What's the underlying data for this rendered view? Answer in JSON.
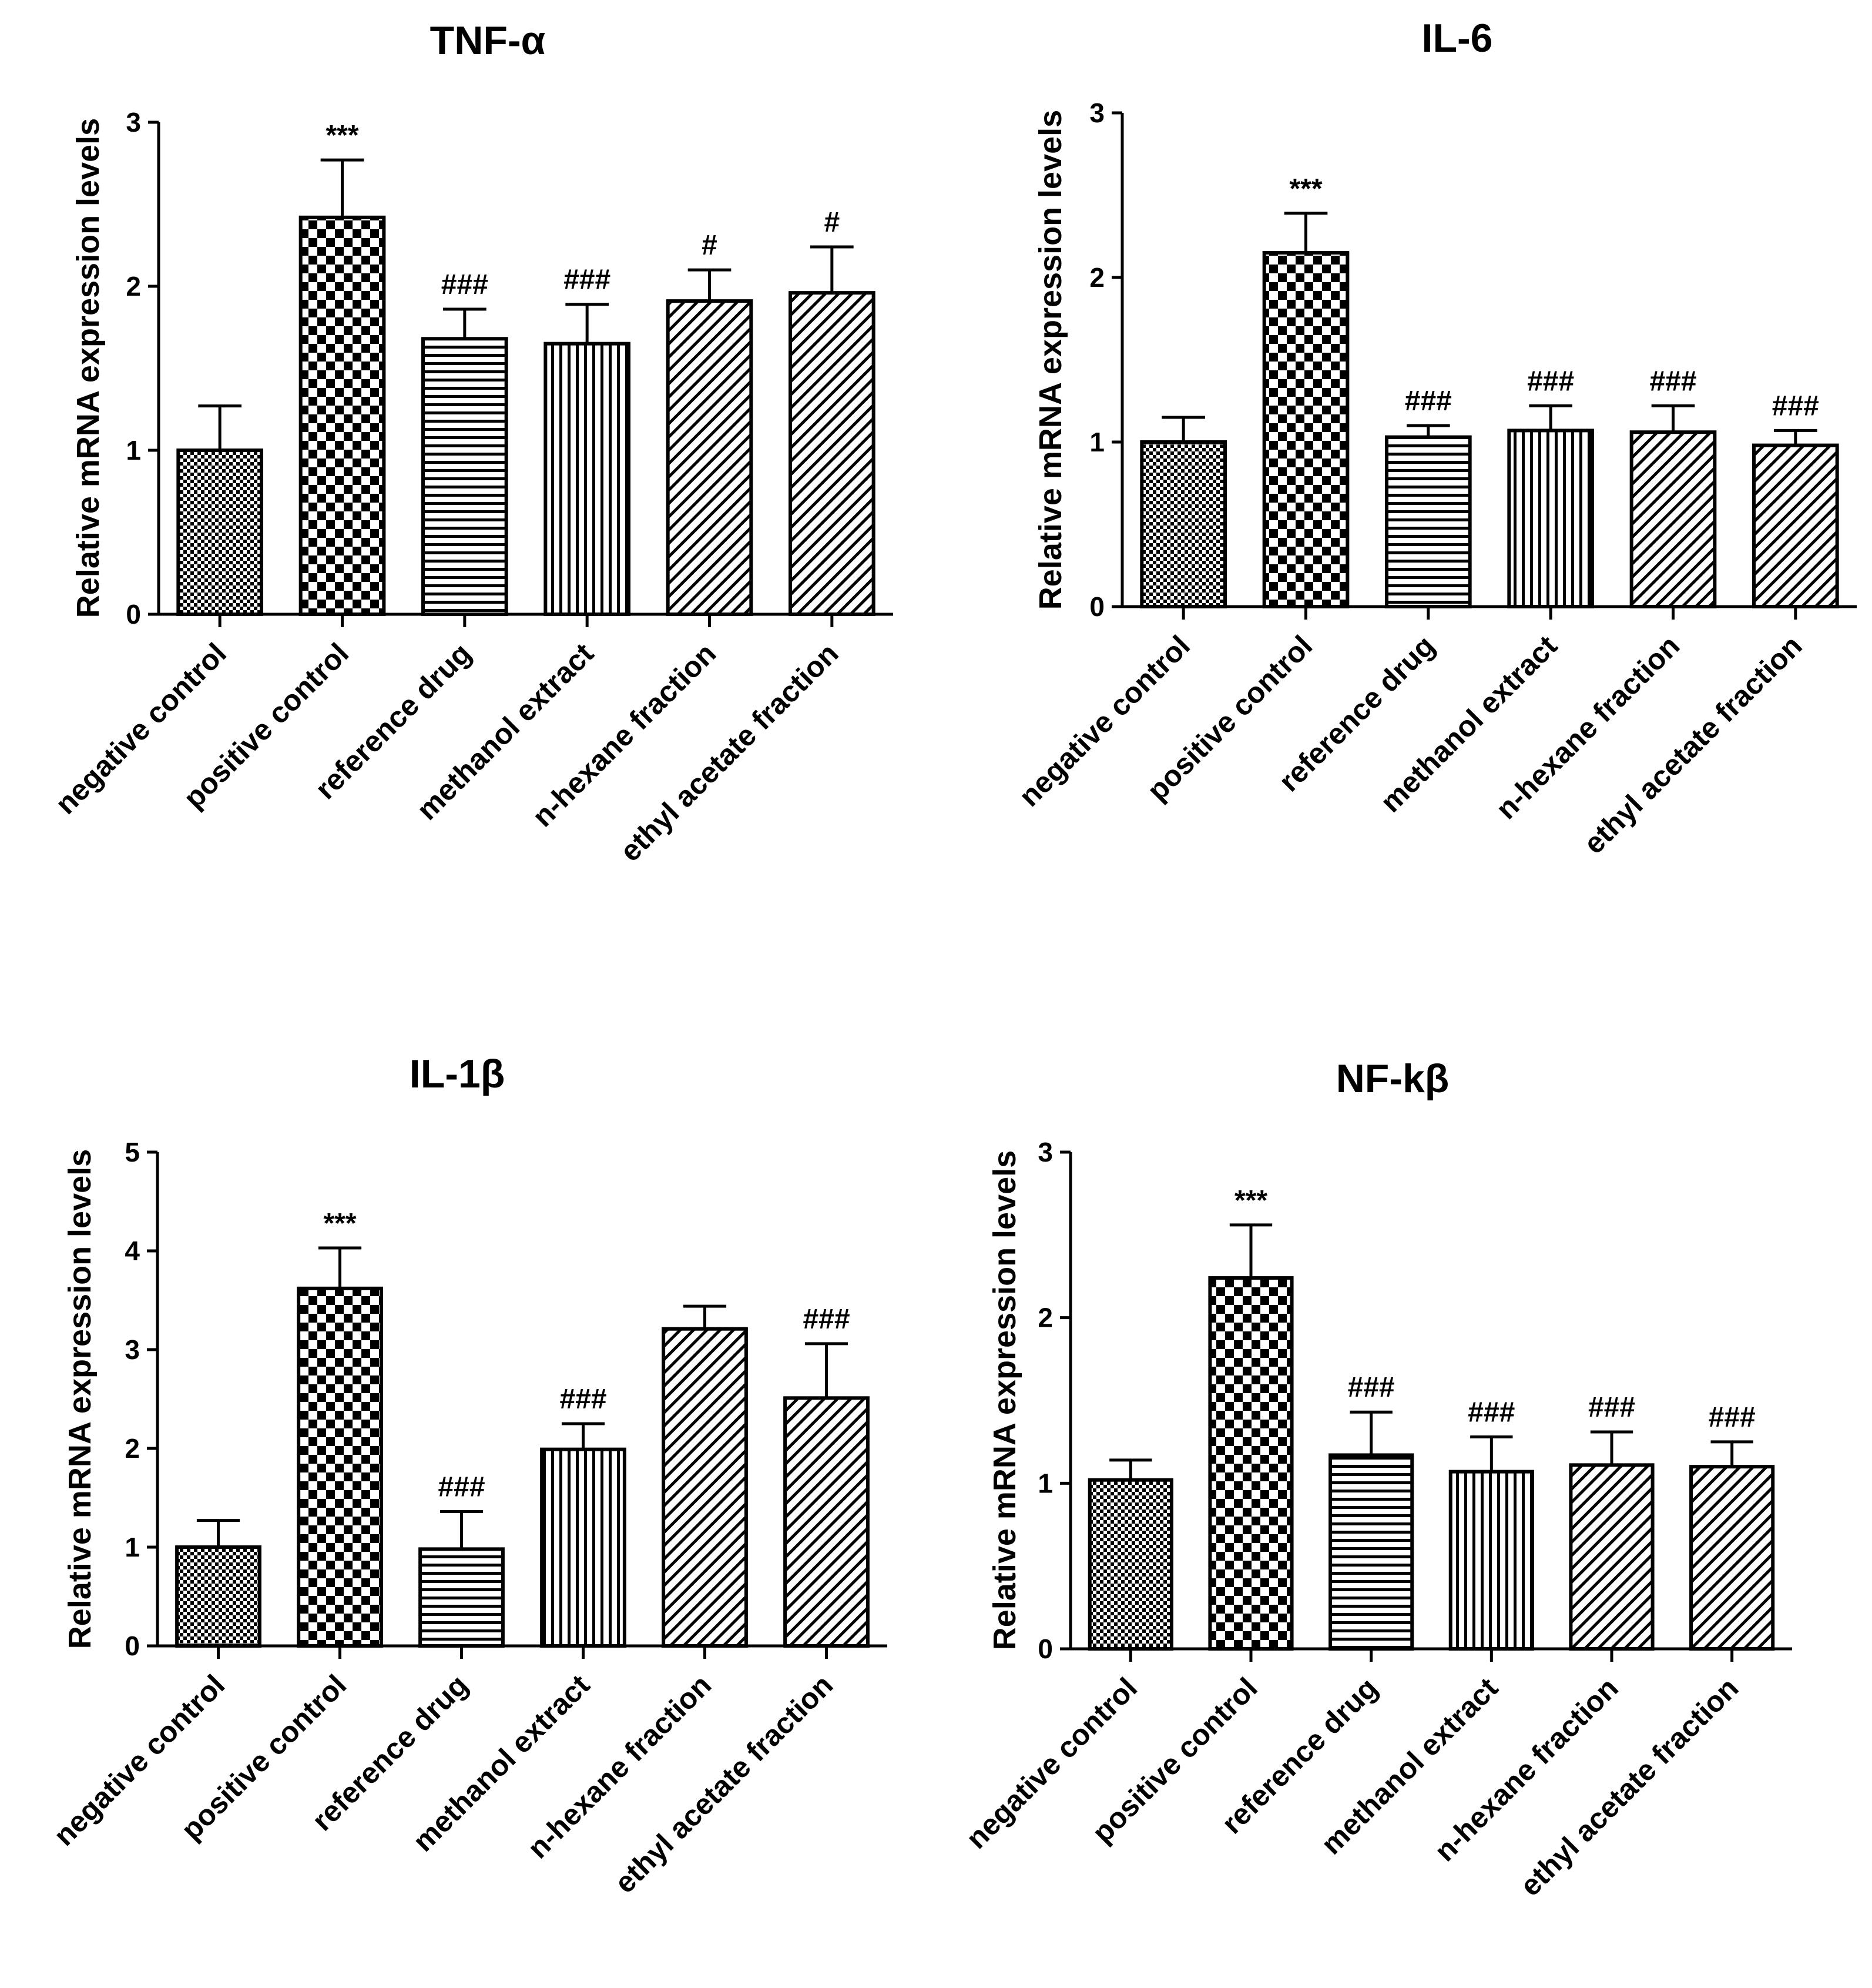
{
  "figure": {
    "description_label": "Relative mRNA expression levels of inflammatory markers"
  },
  "chart_data": [
    {
      "type": "bar",
      "title": "TNF-α",
      "xlabel": "",
      "ylabel": "Relative mRNA expression levels",
      "ylim": [
        0,
        3
      ],
      "yticks": [
        0,
        1,
        2,
        3
      ],
      "categories": [
        "negative control",
        "positive control",
        "reference drug",
        "methanol extract",
        "n-hexane fraction",
        "ethyl acetate fraction"
      ],
      "values": [
        1.0,
        2.42,
        1.68,
        1.65,
        1.91,
        1.96
      ],
      "errors": [
        0.27,
        0.35,
        0.18,
        0.24,
        0.19,
        0.28
      ],
      "annotations": [
        "",
        "***",
        "###",
        "###",
        "#",
        "#"
      ],
      "patterns": [
        "grid",
        "checker",
        "hlines",
        "vlines",
        "diag",
        "diag"
      ]
    },
    {
      "type": "bar",
      "title": "IL-6",
      "xlabel": "",
      "ylabel": "Relative mRNA expression levels",
      "ylim": [
        0,
        3
      ],
      "yticks": [
        0,
        1,
        2,
        3
      ],
      "categories": [
        "negative control",
        "positive control",
        "reference drug",
        "methanol extract",
        "n-hexane fraction",
        "ethyl acetate fraction"
      ],
      "values": [
        1.0,
        2.15,
        1.03,
        1.07,
        1.06,
        0.98
      ],
      "errors": [
        0.15,
        0.24,
        0.07,
        0.15,
        0.16,
        0.09
      ],
      "annotations": [
        "",
        "***",
        "###",
        "###",
        "###",
        "###"
      ],
      "patterns": [
        "grid",
        "checker",
        "hlines",
        "vlines",
        "diag",
        "diag"
      ]
    },
    {
      "type": "bar",
      "title": "IL-1β",
      "xlabel": "",
      "ylabel": "Relative mRNA expression levels",
      "ylim": [
        0,
        5
      ],
      "yticks": [
        0,
        1,
        2,
        3,
        4,
        5
      ],
      "categories": [
        "negative control",
        "positive control",
        "reference drug",
        "methanol extract",
        "n-hexane fraction",
        "ethyl acetate fraction"
      ],
      "values": [
        1.0,
        3.62,
        0.98,
        1.99,
        3.21,
        2.51
      ],
      "errors": [
        0.27,
        0.41,
        0.38,
        0.26,
        0.23,
        0.55
      ],
      "annotations": [
        "",
        "***",
        "###",
        "###",
        "",
        "###"
      ],
      "patterns": [
        "grid",
        "checker",
        "hlines",
        "vlines",
        "diag",
        "diag"
      ]
    },
    {
      "type": "bar",
      "title": "NF-kβ",
      "xlabel": "",
      "ylabel": "Relative mRNA expression levels",
      "ylim": [
        0,
        3
      ],
      "yticks": [
        0,
        1,
        2,
        3
      ],
      "categories": [
        "negative control",
        "positive control",
        "reference drug",
        "methanol extract",
        "n-hexane fraction",
        "ethyl acetate fraction"
      ],
      "values": [
        1.02,
        2.24,
        1.17,
        1.07,
        1.11,
        1.1
      ],
      "errors": [
        0.12,
        0.32,
        0.26,
        0.21,
        0.2,
        0.15
      ],
      "annotations": [
        "",
        "***",
        "###",
        "###",
        "###",
        "###"
      ],
      "patterns": [
        "grid",
        "checker",
        "hlines",
        "vlines",
        "diag",
        "diag"
      ]
    }
  ]
}
